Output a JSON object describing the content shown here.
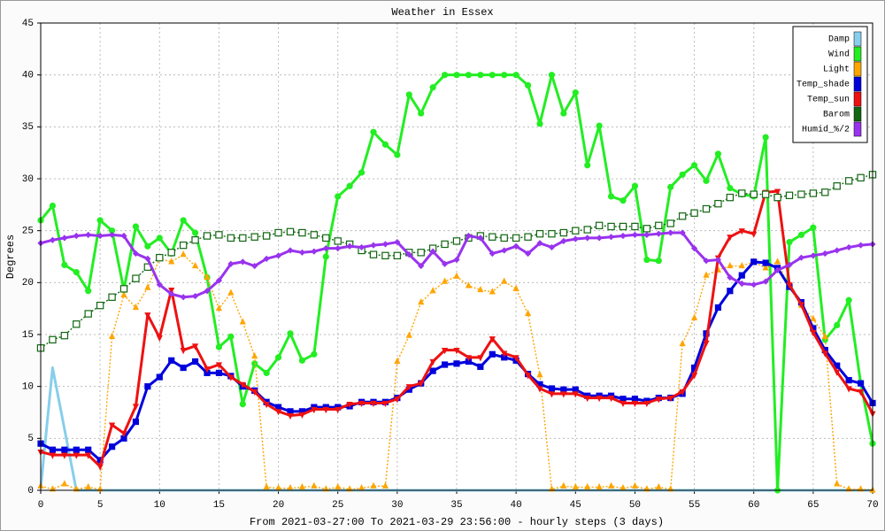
{
  "chart_data": {
    "type": "line",
    "title": "Weather in Essex",
    "y_label": "Degrees",
    "x_label": "From 2021-03-27:00 To 2021-03-29 23:56:00 - hourly steps (3 days)",
    "x": [
      0,
      1,
      2,
      3,
      4,
      5,
      6,
      7,
      8,
      9,
      10,
      11,
      12,
      13,
      14,
      15,
      16,
      17,
      18,
      19,
      20,
      21,
      22,
      23,
      24,
      25,
      26,
      27,
      28,
      29,
      30,
      31,
      32,
      33,
      34,
      35,
      36,
      37,
      38,
      39,
      40,
      41,
      42,
      43,
      44,
      45,
      46,
      47,
      48,
      49,
      50,
      51,
      52,
      53,
      54,
      55,
      56,
      57,
      58,
      59,
      60,
      61,
      62,
      63,
      64,
      65,
      66,
      67,
      68,
      69,
      70
    ],
    "xlim": [
      0,
      70
    ],
    "xticks": [
      0,
      5,
      10,
      15,
      20,
      25,
      30,
      35,
      40,
      45,
      50,
      55,
      60,
      65,
      70
    ],
    "ylim": [
      0,
      45
    ],
    "yticks": [
      0,
      5,
      10,
      15,
      20,
      25,
      30,
      35,
      40,
      45
    ],
    "grid": true,
    "legend_position": "upper right",
    "series": [
      {
        "name": "Damp",
        "color": "#87ceeb",
        "marker": "none",
        "dash": false,
        "values": [
          0.2,
          11.8,
          5.9,
          0,
          0,
          0,
          0,
          0,
          0,
          0,
          0,
          0,
          0,
          0,
          0,
          0,
          0,
          0,
          0,
          0,
          0,
          0,
          0,
          0,
          0,
          0,
          0,
          0,
          0,
          0,
          0,
          0,
          0,
          0,
          0,
          0,
          0,
          0,
          0,
          0,
          0,
          0,
          0,
          0,
          0,
          0,
          0,
          0,
          0,
          0,
          0,
          0,
          0,
          0,
          0,
          0,
          0,
          0,
          0,
          0,
          0,
          0,
          0,
          0,
          0,
          0,
          0,
          0,
          0,
          0,
          0
        ]
      },
      {
        "name": "Wind",
        "color": "#22ee22",
        "marker": "circle",
        "dash": false,
        "values": [
          26,
          27.4,
          21.7,
          21,
          19.2,
          26,
          25,
          19.3,
          25.4,
          23.5,
          24.3,
          22.8,
          26,
          24.8,
          20.5,
          13.8,
          14.8,
          8.3,
          12.2,
          11.3,
          12.8,
          15.1,
          12.5,
          13.1,
          22.5,
          28.3,
          29.3,
          30.6,
          34.5,
          33.3,
          32.3,
          38.1,
          36.3,
          38.8,
          40,
          40,
          40,
          40,
          40,
          40,
          40,
          39,
          35.3,
          40,
          36.3,
          38.3,
          31.3,
          35.1,
          28.3,
          27.9,
          29.3,
          22.2,
          22.1,
          29.2,
          30.4,
          31.3,
          29.8,
          32.4,
          29.1,
          28.5,
          28.3,
          34,
          0,
          23.9,
          24.6,
          25.3,
          14.5,
          15.9,
          18.3,
          10.3,
          4.5
        ]
      },
      {
        "name": "Light",
        "color": "#ffa500",
        "marker": "triangle-up",
        "dash": true,
        "values": [
          0.4,
          0.1,
          0.6,
          0.1,
          0.3,
          0.1,
          14.8,
          18.8,
          17.6,
          19.5,
          22.3,
          22,
          22.7,
          21.6,
          20.5,
          17.5,
          19,
          16.2,
          12.9,
          0.3,
          0.2,
          0.2,
          0.3,
          0.4,
          0.1,
          0.3,
          0.1,
          0.2,
          0.4,
          0.4,
          12.4,
          14.9,
          18.1,
          19.2,
          20.1,
          20.6,
          19.7,
          19.3,
          19.1,
          20.1,
          19.4,
          17,
          11.1,
          0.1,
          0.4,
          0.3,
          0.3,
          0.3,
          0.4,
          0.2,
          0.4,
          0.1,
          0.3,
          0.1,
          14.1,
          16.6,
          20.7,
          21.2,
          21.6,
          21.6,
          22,
          21.4,
          22,
          19.5,
          17.8,
          16.5,
          14.8,
          0.6,
          0.1,
          0.1,
          0
        ]
      },
      {
        "name": "Temp_shade",
        "color": "#0000dd",
        "marker": "square",
        "dash": false,
        "values": [
          4.5,
          3.9,
          3.9,
          3.9,
          3.9,
          2.9,
          4.2,
          5,
          6.6,
          10,
          10.9,
          12.5,
          11.8,
          12.4,
          11.3,
          11.3,
          11,
          10,
          9.6,
          8.5,
          8,
          7.6,
          7.6,
          8,
          8,
          8,
          8.1,
          8.5,
          8.5,
          8.5,
          8.9,
          9.7,
          10.3,
          11.5,
          12.1,
          12.2,
          12.4,
          11.9,
          13.1,
          12.8,
          12.5,
          11.2,
          10.2,
          9.8,
          9.7,
          9.7,
          9.1,
          9.1,
          9.1,
          8.8,
          8.8,
          8.6,
          8.9,
          8.9,
          9.3,
          11.8,
          15.1,
          17.6,
          19.2,
          20.7,
          22,
          21.9,
          21.4,
          19.6,
          18.1,
          15.6,
          13.5,
          12,
          10.6,
          10.3,
          8.4
        ]
      },
      {
        "name": "Temp_sun",
        "color": "#ee1111",
        "marker": "triangle-down",
        "dash": false,
        "values": [
          3.7,
          3.4,
          3.4,
          3.4,
          3.4,
          2.3,
          6.3,
          5.5,
          8.1,
          16.9,
          14.7,
          19.3,
          13.5,
          13.9,
          11.7,
          12.1,
          10.9,
          10.2,
          9.5,
          8.3,
          7.6,
          7.2,
          7.3,
          7.8,
          7.8,
          7.8,
          8.3,
          8.4,
          8.4,
          8.4,
          8.8,
          10,
          10.3,
          12.4,
          13.5,
          13.5,
          12.8,
          12.8,
          14.6,
          13.2,
          12.8,
          11.1,
          9.8,
          9.3,
          9.3,
          9.3,
          8.9,
          8.9,
          8.9,
          8.4,
          8.4,
          8.4,
          8.8,
          8.9,
          9.5,
          11.1,
          14.2,
          22.4,
          24.4,
          25,
          24.7,
          28.7,
          28.8,
          19.8,
          17.9,
          15.2,
          13.2,
          11.4,
          9.8,
          9.5,
          7.4
        ]
      },
      {
        "name": "Barom",
        "color": "#116611",
        "marker": "open-square",
        "dash": true,
        "values": [
          13.7,
          14.5,
          14.9,
          16,
          17,
          17.8,
          18.6,
          19.4,
          20.4,
          21.5,
          22.4,
          22.9,
          23.6,
          24.1,
          24.5,
          24.6,
          24.3,
          24.3,
          24.4,
          24.5,
          24.8,
          24.9,
          24.8,
          24.6,
          24.3,
          24,
          23.7,
          23.1,
          22.7,
          22.6,
          22.6,
          22.9,
          22.9,
          23.3,
          23.7,
          24,
          24.3,
          24.5,
          24.4,
          24.3,
          24.3,
          24.4,
          24.7,
          24.7,
          24.8,
          25,
          25.1,
          25.5,
          25.4,
          25.4,
          25.4,
          25.2,
          25.5,
          25.7,
          26.4,
          26.7,
          27.1,
          27.6,
          28.2,
          28.6,
          28.5,
          28.5,
          28.2,
          28.4,
          28.5,
          28.6,
          28.7,
          29.3,
          29.8,
          30.1,
          30.4
        ]
      },
      {
        "name": "Humid_%/2",
        "color": "#9933ee",
        "marker": "diamond",
        "dash": false,
        "values": [
          23.8,
          24.1,
          24.3,
          24.5,
          24.6,
          24.5,
          24.6,
          24.5,
          22.8,
          22.3,
          19.8,
          18.9,
          18.6,
          18.7,
          19.2,
          20.2,
          21.8,
          22,
          21.6,
          22.3,
          22.6,
          23.1,
          22.9,
          23,
          23.3,
          23.3,
          23.5,
          23.4,
          23.6,
          23.7,
          23.9,
          22.7,
          21.6,
          23,
          21.8,
          22.2,
          24.5,
          24.3,
          22.8,
          23.1,
          23.5,
          22.8,
          23.8,
          23.4,
          24,
          24.2,
          24.3,
          24.3,
          24.4,
          24.5,
          24.6,
          24.6,
          24.7,
          24.8,
          24.8,
          23.3,
          22.1,
          22.2,
          20.5,
          19.9,
          19.8,
          20.1,
          21.2,
          21.7,
          22.4,
          22.6,
          22.8,
          23.1,
          23.4,
          23.6,
          23.7
        ]
      }
    ]
  }
}
